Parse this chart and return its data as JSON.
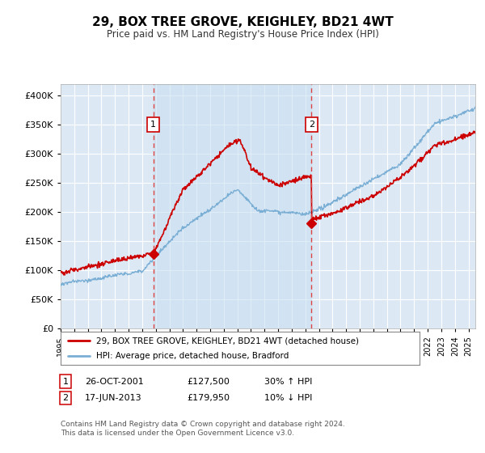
{
  "title": "29, BOX TREE GROVE, KEIGHLEY, BD21 4WT",
  "subtitle": "Price paid vs. HM Land Registry's House Price Index (HPI)",
  "ylim": [
    0,
    420000
  ],
  "yticks": [
    0,
    50000,
    100000,
    150000,
    200000,
    250000,
    300000,
    350000,
    400000
  ],
  "xlim_start": 1995.0,
  "xlim_end": 2025.5,
  "sale1_date": 2001.82,
  "sale1_price": 127500,
  "sale1_label": "1",
  "sale2_date": 2013.46,
  "sale2_price": 179950,
  "sale2_label": "2",
  "legend_line1": "29, BOX TREE GROVE, KEIGHLEY, BD21 4WT (detached house)",
  "legend_line2": "HPI: Average price, detached house, Bradford",
  "table_row1": [
    "1",
    "26-OCT-2001",
    "£127,500",
    "30% ↑ HPI"
  ],
  "table_row2": [
    "2",
    "17-JUN-2013",
    "£179,950",
    "10% ↓ HPI"
  ],
  "footnote": "Contains HM Land Registry data © Crown copyright and database right 2024.\nThis data is licensed under the Open Government Licence v3.0.",
  "red_line_color": "#cc0000",
  "blue_line_color": "#7aaed4",
  "blue_fill_color": "#c8dff0",
  "dashed_line_color": "#dd4444",
  "grid_color": "#ffffff",
  "border_color": "#cc0000",
  "plot_bg_color": "#dce9f5"
}
